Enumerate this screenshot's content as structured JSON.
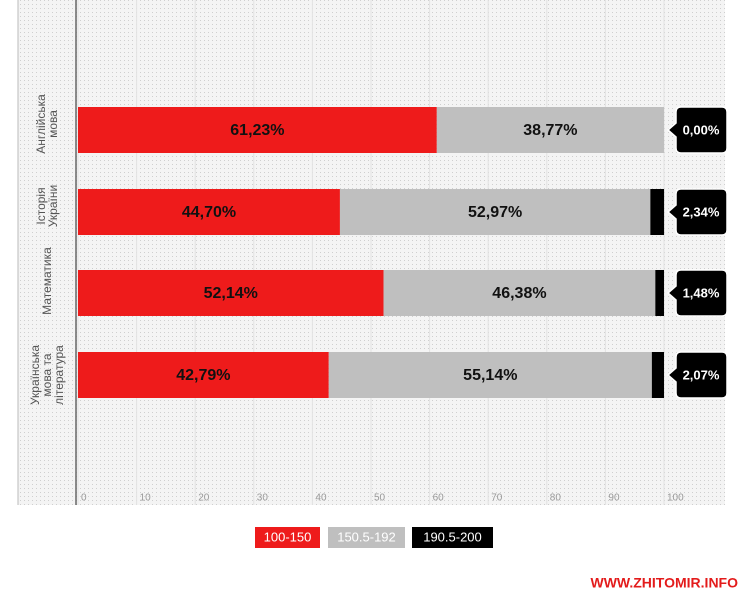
{
  "chart_data": {
    "type": "bar",
    "orientation": "horizontal",
    "stacked": true,
    "categories": [
      "Англійська мова",
      "Історія України",
      "Математика",
      "Українська мова та література"
    ],
    "series": [
      {
        "name": "100-150",
        "color": "#ee1b1b",
        "values": [
          61.23,
          44.7,
          52.14,
          42.79
        ],
        "value_labels": [
          "61,23%",
          "44,70%",
          "52,14%",
          "42,79%"
        ]
      },
      {
        "name": "150.5-192",
        "color": "#bfbfbf",
        "values": [
          38.77,
          52.97,
          46.38,
          55.14
        ],
        "value_labels": [
          "38,77%",
          "52,97%",
          "46,38%",
          "55,14%"
        ]
      },
      {
        "name": "190.5-200",
        "color": "#000000",
        "values": [
          0.0,
          2.34,
          1.48,
          2.07
        ],
        "value_labels": [
          "0,00%",
          "2,34%",
          "1,48%",
          "2,07%"
        ]
      }
    ],
    "xlim": [
      0,
      100
    ],
    "xticks": [
      0,
      10,
      20,
      30,
      40,
      50,
      60,
      70,
      80,
      90,
      100
    ],
    "grid": true,
    "watermark": "WWW.ZHITOMIR.INFO"
  }
}
